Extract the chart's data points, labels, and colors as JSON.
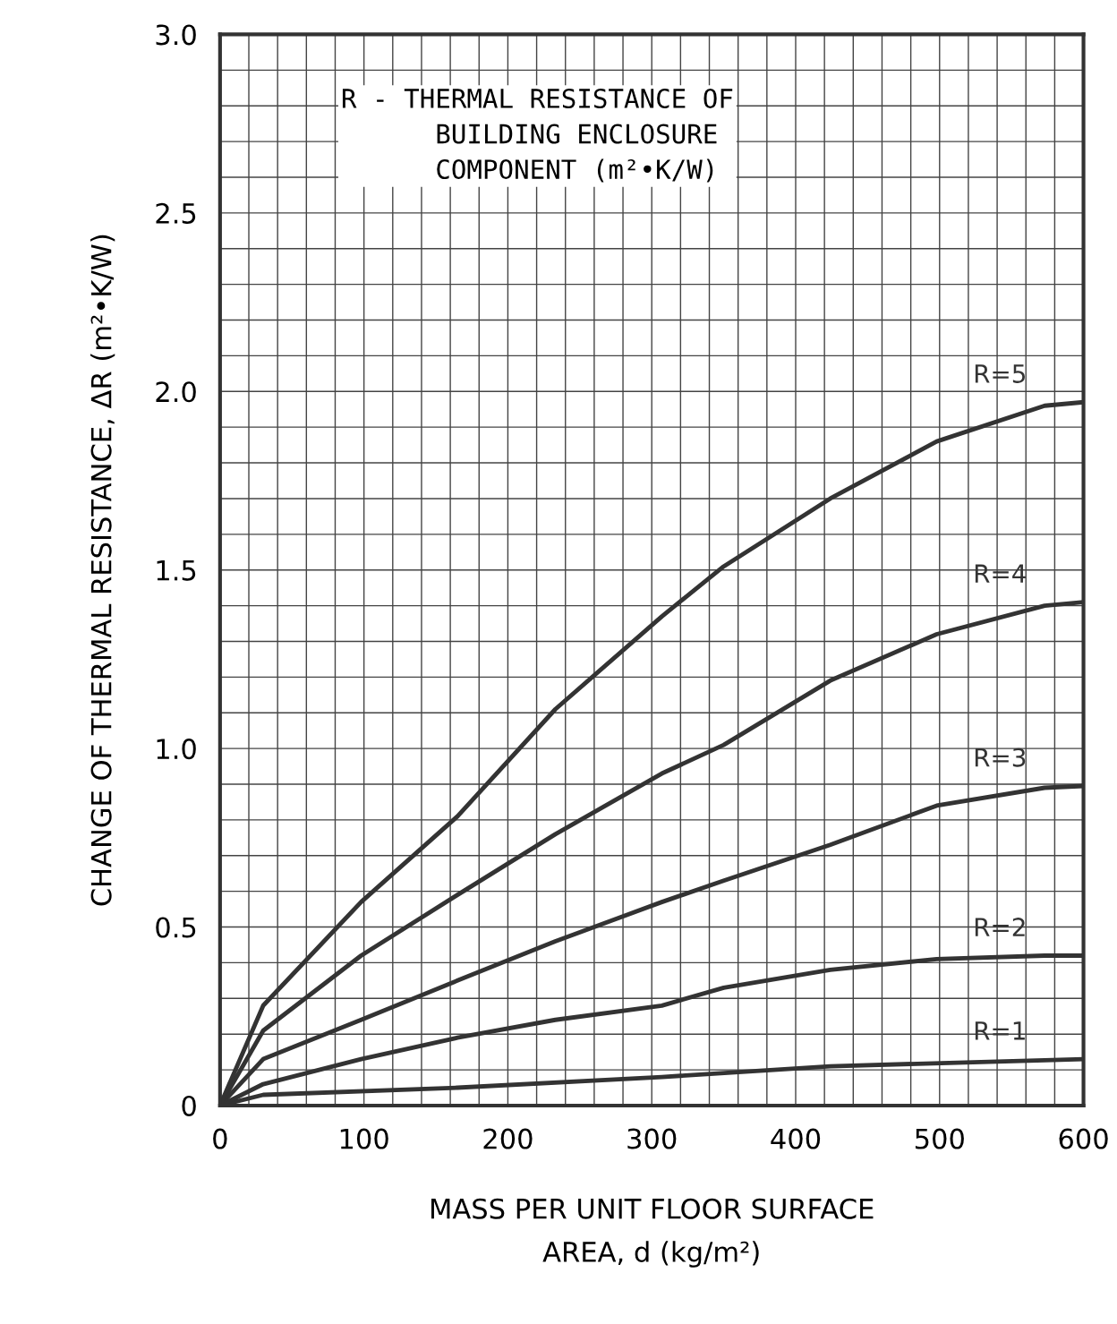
{
  "chart_data": {
    "type": "line",
    "xlabel": "MASS PER UNIT FLOOR SURFACE\nAREA, d (kg/m²)",
    "ylabel": "CHANGE OF THERMAL RESISTANCE, ΔR (m²•K/W)",
    "annotations": [
      "R - THERMAL RESISTANCE OF\n      BUILDING ENCLOSURE\n      COMPONENT (m²•K/W)"
    ],
    "series": [
      {
        "name": "R=1",
        "color": "#333333",
        "x": [
          0,
          30,
          165,
          307,
          424,
          573,
          600
        ],
        "values": [
          0,
          0.03,
          0.05,
          0.08,
          0.11,
          0.127,
          0.13
        ]
      },
      {
        "name": "R=2",
        "color": "#333333",
        "x": [
          0,
          30,
          98,
          165,
          233,
          307,
          350,
          424,
          498,
          573,
          600
        ],
        "values": [
          0,
          0.06,
          0.13,
          0.19,
          0.24,
          0.28,
          0.33,
          0.38,
          0.41,
          0.42,
          0.42
        ]
      },
      {
        "name": "R=3",
        "color": "#333333",
        "x": [
          0,
          30,
          98,
          165,
          233,
          307,
          350,
          424,
          498,
          573,
          600
        ],
        "values": [
          0,
          0.13,
          0.24,
          0.35,
          0.46,
          0.57,
          0.63,
          0.73,
          0.84,
          0.89,
          0.895
        ]
      },
      {
        "name": "R=4",
        "color": "#333333",
        "x": [
          0,
          30,
          98,
          165,
          233,
          307,
          350,
          424,
          498,
          573,
          600
        ],
        "values": [
          0,
          0.21,
          0.42,
          0.59,
          0.76,
          0.93,
          1.01,
          1.19,
          1.32,
          1.4,
          1.41
        ]
      },
      {
        "name": "R=5",
        "color": "#333333",
        "x": [
          0,
          30,
          98,
          165,
          233,
          307,
          350,
          424,
          498,
          573,
          600
        ],
        "values": [
          0,
          0.28,
          0.57,
          0.81,
          1.11,
          1.37,
          1.51,
          1.7,
          1.86,
          1.96,
          1.97
        ]
      }
    ],
    "xlim": [
      0,
      600
    ],
    "ylim": [
      0,
      3.0
    ],
    "xticks": [
      0,
      100,
      200,
      300,
      400,
      500,
      600
    ],
    "yticks": [
      0,
      0.5,
      {
        "value": 1.0,
        "label": "1.0"
      },
      1.5,
      {
        "value": 2.0,
        "label": "2.0"
      },
      2.5,
      {
        "value": 3.0,
        "label": "3.0"
      }
    ],
    "grid": true,
    "marker": "none",
    "line_style": "solid"
  }
}
